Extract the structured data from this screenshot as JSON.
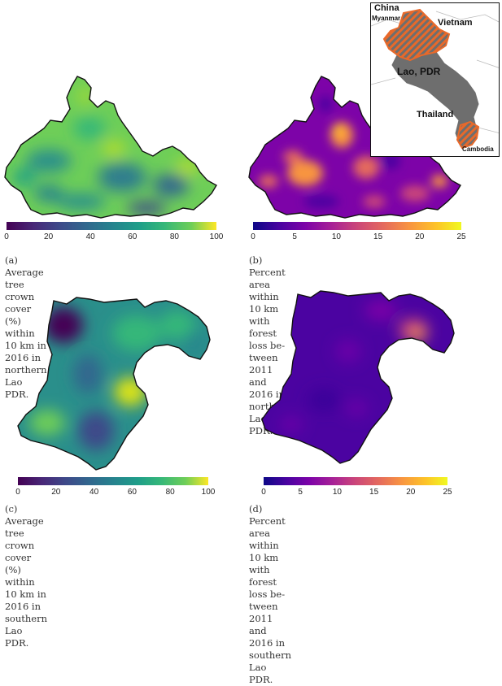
{
  "panels": [
    {
      "id": "a",
      "colorbar": {
        "colormap": "viridis",
        "ticks": [
          "0",
          "20",
          "40",
          "60",
          "80",
          "100"
        ]
      },
      "caption_line1": "(a) Average tree crown cover (%) within 10 km in",
      "caption_line2": "2016 in northern Lao PDR."
    },
    {
      "id": "b",
      "colorbar": {
        "colormap": "plasma",
        "ticks": [
          "0",
          "5",
          "10",
          "15",
          "20",
          "25"
        ]
      },
      "caption_line1": "(b) Percent area within 10 km with forest loss be-",
      "caption_line2": "tween 2011 and 2016 in northern Lao PDR."
    },
    {
      "id": "c",
      "colorbar": {
        "colormap": "viridis",
        "ticks": [
          "0",
          "20",
          "40",
          "60",
          "80",
          "100"
        ]
      },
      "caption_line1": "(c) Average tree crown cover (%) within 10 km in",
      "caption_line2": "2016 in southern Lao PDR."
    },
    {
      "id": "d",
      "colorbar": {
        "colormap": "plasma",
        "ticks": [
          "0",
          "5",
          "10",
          "15",
          "20",
          "25"
        ]
      },
      "caption_line1": "(d) Percent area within 10 km with forest loss be-",
      "caption_line2": "tween 2011 and 2016 in southern Lao PDR."
    }
  ],
  "inset_map": {
    "labels": {
      "china": "China",
      "myanmar": "Myanmar",
      "vietnam": "Vietnam",
      "lao": "Lao, PDR",
      "thailand": "Thailand",
      "cambodia": "Cambodia"
    },
    "colors": {
      "country_fill": "#6e6e6e",
      "highlight": "#e8692a"
    }
  }
}
